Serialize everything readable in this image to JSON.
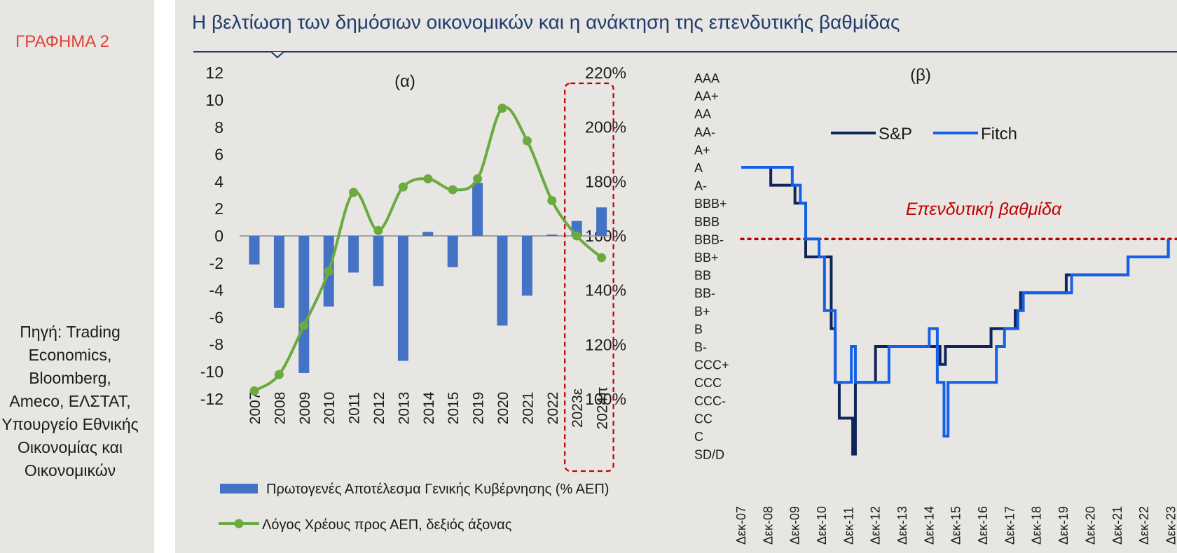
{
  "chart_label": "ΓΡΑΦΗΜΑ 2",
  "source": "Πηγή: Trading Economics, Bloomberg, Ameco, ΕΛΣΤΑΤ, Υπουργείο Εθνικής Οικονομίας και Οικονομικών",
  "title": "Η βελτίωση των δημόσιων οικονομικών και η ανάκτηση της επενδυτικής βαθμίδας",
  "colors": {
    "title": "#1f3b6f",
    "label_red": "#e0433a",
    "bar": "#4472c4",
    "line": "#6aaa3e",
    "sp": "#0f2458",
    "fitch": "#1560e8",
    "threshold": "#c00000"
  },
  "chart_data": [
    {
      "type": "bar+line",
      "title": "(α)",
      "categories": [
        "2007",
        "2008",
        "2009",
        "2010",
        "2011",
        "2012",
        "2013",
        "2014",
        "2015",
        "2019",
        "2020",
        "2021",
        "2022",
        "2023ε",
        "2024π"
      ],
      "series": [
        {
          "name": "Πρωτογενές Αποτέλεσμα Γενικής Κυβέρνησης (% ΑΕΠ)",
          "type": "bar",
          "axis": "left",
          "values": [
            -2.1,
            -5.3,
            -10.1,
            -5.2,
            -2.7,
            -3.7,
            -9.2,
            0.3,
            -2.3,
            3.9,
            -6.6,
            -4.4,
            0.1,
            1.1,
            2.1
          ]
        },
        {
          "name": "Λόγος Χρέους προς ΑΕΠ, δεξιός άξονας",
          "type": "line",
          "axis": "right",
          "values": [
            103,
            109,
            127,
            147,
            176,
            162,
            178,
            181,
            177,
            181,
            207,
            195,
            173,
            160,
            152
          ]
        }
      ],
      "ylim_left": [
        -12,
        12
      ],
      "yticks_left": [
        "12",
        "10",
        "8",
        "6",
        "4",
        "2",
        "0",
        "-2",
        "-4",
        "-6",
        "-8",
        "-10",
        "-12"
      ],
      "ylim_right": [
        100,
        220
      ],
      "yticks_right": [
        "220%",
        "200%",
        "180%",
        "160%",
        "140%",
        "120%",
        "100%"
      ],
      "highlight": [
        "2023ε",
        "2024π"
      ],
      "legend": [
        "Πρωτογενές Αποτέλεσμα Γενικής Κυβέρνησης (% ΑΕΠ)",
        "Λόγος Χρέους προς ΑΕΠ, δεξιός άξονας"
      ]
    },
    {
      "type": "step-line",
      "title": "(β)",
      "rating_scale": [
        "AAA",
        "AA+",
        "AA",
        "AA-",
        "A+",
        "A",
        "A-",
        "BBB+",
        "BBB",
        "BBB-",
        "BB+",
        "BB",
        "BB-",
        "B+",
        "B",
        "B-",
        "CCC+",
        "CCC",
        "CCC-",
        "CC",
        "C",
        "SD/D"
      ],
      "x_labels": [
        "Δεκ-07",
        "Δεκ-08",
        "Δεκ-09",
        "Δεκ-10",
        "Δεκ-11",
        "Δεκ-12",
        "Δεκ-13",
        "Δεκ-14",
        "Δεκ-15",
        "Δεκ-16",
        "Δεκ-17",
        "Δεκ-18",
        "Δεκ-19",
        "Δεκ-20",
        "Δεκ-21",
        "Δεκ-22",
        "Δεκ-23"
      ],
      "threshold_label": "Επενδυτική βαθμίδα",
      "threshold_rating": "BBB-",
      "series": [
        {
          "name": "S&P",
          "steps": [
            [
              2007.9,
              "A"
            ],
            [
              2009.0,
              "A-"
            ],
            [
              2009.9,
              "BBB+"
            ],
            [
              2010.3,
              "BB+"
            ],
            [
              2011.25,
              "B"
            ],
            [
              2011.4,
              "CCC"
            ],
            [
              2011.55,
              "CC"
            ],
            [
              2012.05,
              "SD/D"
            ],
            [
              2012.15,
              "CCC"
            ],
            [
              2012.9,
              "B-"
            ],
            [
              2015.3,
              "CCC+"
            ],
            [
              2015.5,
              "B-"
            ],
            [
              2016.9,
              "B-"
            ],
            [
              2017.2,
              "B"
            ],
            [
              2018.1,
              "B+"
            ],
            [
              2018.3,
              "BB-"
            ],
            [
              2019.8,
              "BB-"
            ],
            [
              2020.0,
              "BB"
            ],
            [
              2022.1,
              "BB"
            ],
            [
              2022.3,
              "BB+"
            ],
            [
              2023.8,
              "BBB-"
            ]
          ]
        },
        {
          "name": "Fitch",
          "steps": [
            [
              2007.9,
              "A"
            ],
            [
              2009.8,
              "A-"
            ],
            [
              2010.1,
              "BBB+"
            ],
            [
              2010.3,
              "BBB-"
            ],
            [
              2010.8,
              "BB+"
            ],
            [
              2011.0,
              "B+"
            ],
            [
              2011.4,
              "CCC"
            ],
            [
              2012.0,
              "B-"
            ],
            [
              2012.15,
              "CCC"
            ],
            [
              2013.0,
              "CCC"
            ],
            [
              2013.4,
              "B-"
            ],
            [
              2014.9,
              "B"
            ],
            [
              2015.2,
              "CCC"
            ],
            [
              2015.45,
              "C"
            ],
            [
              2015.6,
              "CCC"
            ],
            [
              2017.4,
              "B-"
            ],
            [
              2017.7,
              "B"
            ],
            [
              2018.2,
              "B+"
            ],
            [
              2018.4,
              "BB-"
            ],
            [
              2020.2,
              "BB"
            ],
            [
              2022.1,
              "BB"
            ],
            [
              2022.3,
              "BB+"
            ],
            [
              2023.8,
              "BBB-"
            ]
          ]
        }
      ],
      "legend": [
        "S&P",
        "Fitch"
      ]
    }
  ]
}
